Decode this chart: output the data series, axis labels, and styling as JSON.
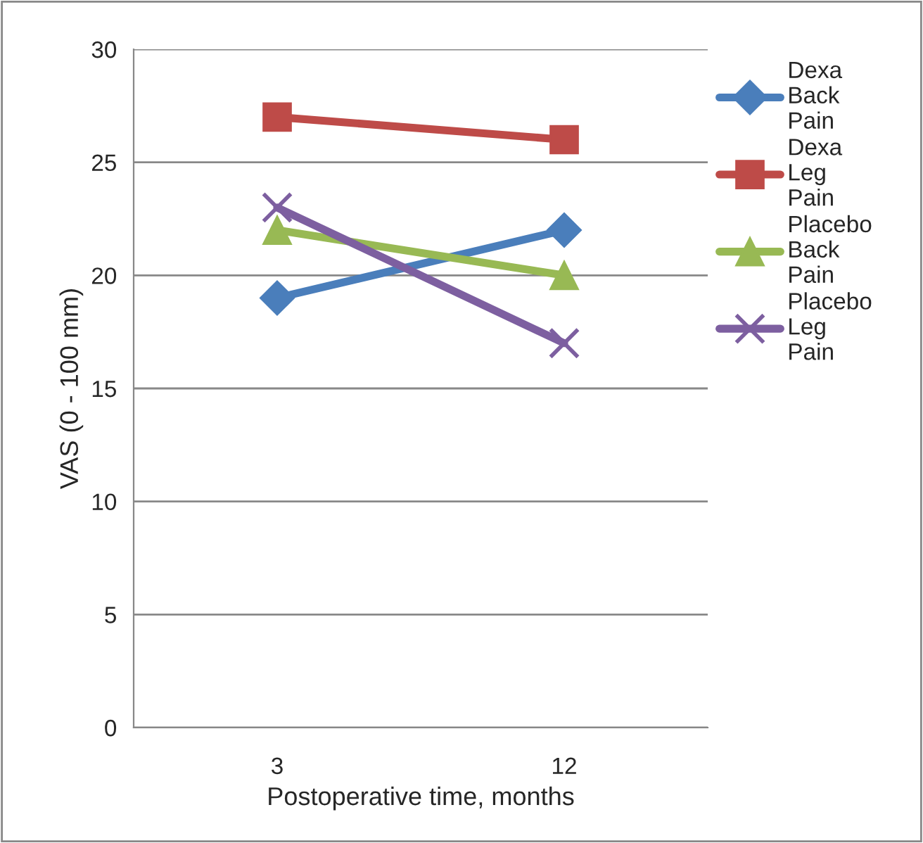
{
  "chart_data": {
    "type": "line",
    "xlabel": "Postoperative time, months",
    "ylabel": "VAS (0 - 100 mm)",
    "categories": [
      "3",
      "12"
    ],
    "series": [
      {
        "name": "Dexa Back Pain",
        "color": "#4a7ebb",
        "marker": "diamond",
        "values": [
          19,
          22
        ]
      },
      {
        "name": "Dexa Leg Pain",
        "color": "#be4b48",
        "marker": "square",
        "values": [
          27,
          26
        ]
      },
      {
        "name": "Placebo Back Pain",
        "color": "#98b954",
        "marker": "triangle",
        "values": [
          22,
          20
        ]
      },
      {
        "name": "Placebo Leg Pain",
        "color": "#7d5fa0",
        "marker": "cross",
        "values": [
          23,
          17
        ]
      }
    ],
    "ylim": [
      0,
      30
    ],
    "yticks": [
      0,
      5,
      10,
      15,
      20,
      25,
      30
    ],
    "grid": "y",
    "legend": "right"
  }
}
